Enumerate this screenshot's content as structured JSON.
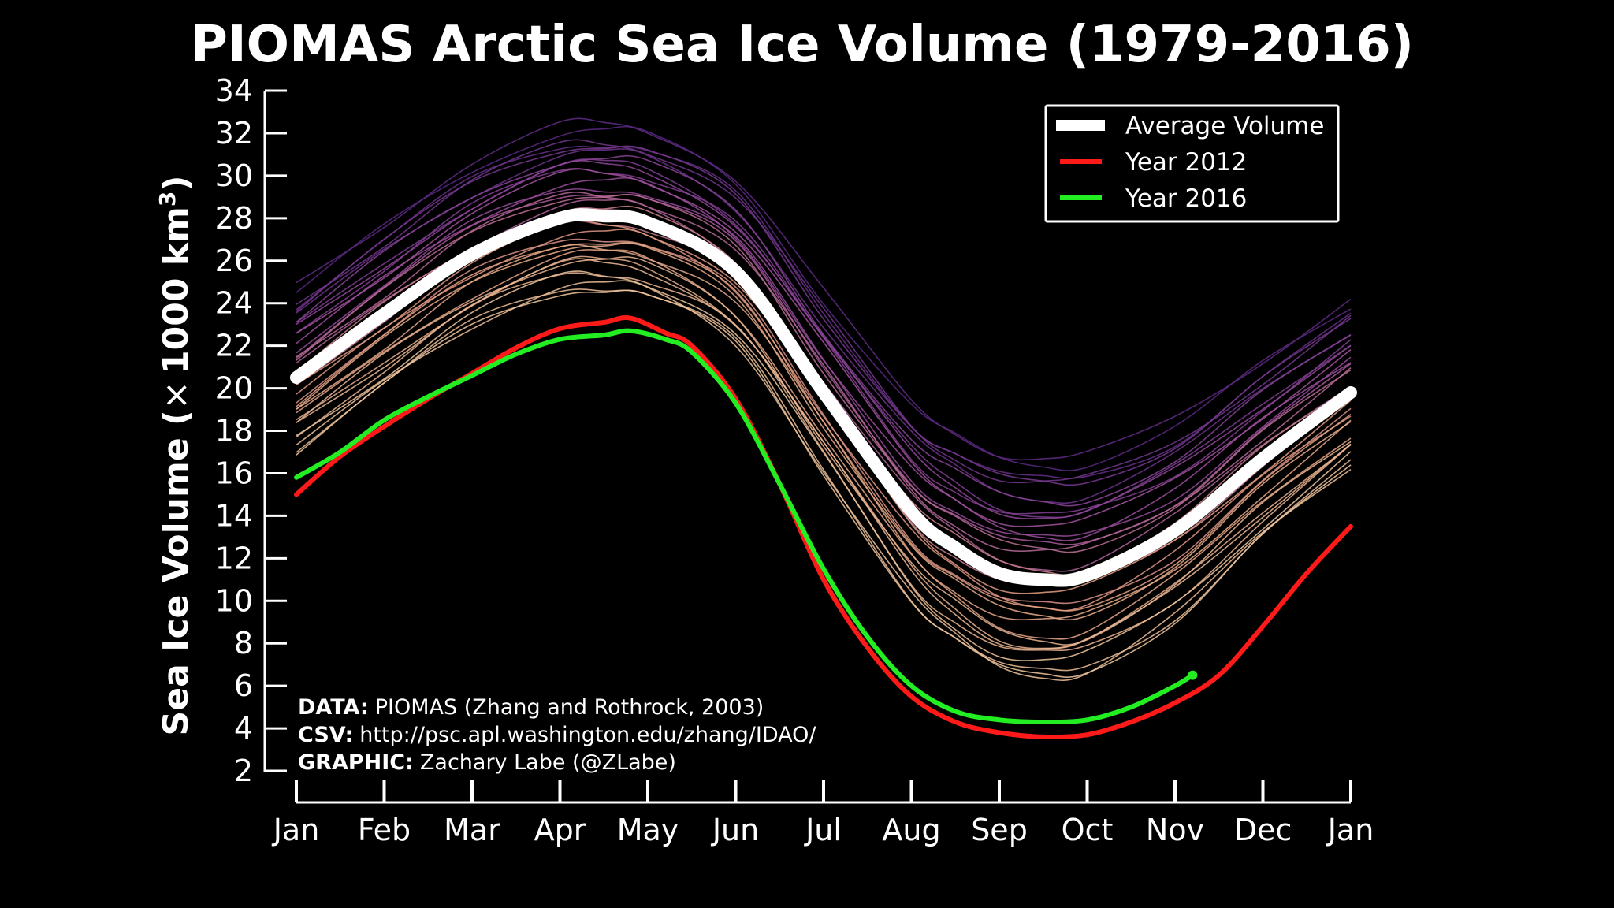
{
  "chart_data": {
    "type": "line",
    "title": "PIOMAS Arctic Sea Ice Volume (1979-2016)",
    "ylabel": "Sea Ice Volume (× 1000 km³)",
    "ylabel_parts": {
      "main": "Sea Ice Volume (",
      "mult": "×",
      "unit": "1000 km",
      "sup": "3",
      "close": ")"
    },
    "xlabel": "",
    "ylim": [
      2,
      34
    ],
    "yticks": [
      2,
      4,
      6,
      8,
      10,
      12,
      14,
      16,
      18,
      20,
      22,
      24,
      26,
      28,
      30,
      32,
      34
    ],
    "months": [
      "Jan",
      "Feb",
      "Mar",
      "Apr",
      "May",
      "Jun",
      "Jul",
      "Aug",
      "Sep",
      "Oct",
      "Nov",
      "Dec",
      "Jan"
    ],
    "legend": {
      "position": "top-right",
      "entries": [
        {
          "label": "Average Volume",
          "color": "#ffffff"
        },
        {
          "label": "Year 2012",
          "color": "#ff1a1a"
        },
        {
          "label": "Year 2016",
          "color": "#22ee22"
        }
      ]
    },
    "series": [
      {
        "name": "Average Volume",
        "color": "#ffffff",
        "x": [
          0,
          1,
          2,
          3,
          3.5,
          4,
          5,
          6,
          7,
          7.5,
          8,
          8.5,
          9,
          10,
          11,
          12
        ],
        "values": [
          20.5,
          23.5,
          26.3,
          28.0,
          28.1,
          27.8,
          25.5,
          19.8,
          14.2,
          12.5,
          11.3,
          11.0,
          11.2,
          13.3,
          16.7,
          19.8
        ]
      },
      {
        "name": "Year 2012",
        "color": "#ff1a1a",
        "x": [
          0,
          0.5,
          1,
          1.5,
          2,
          2.5,
          3,
          3.5,
          3.8,
          4.2,
          4.5,
          5,
          5.5,
          6,
          6.5,
          7,
          7.5,
          8,
          8.5,
          9,
          9.5,
          10,
          10.5,
          11,
          11.5,
          12
        ],
        "values": [
          15.0,
          16.8,
          18.2,
          19.5,
          20.7,
          21.9,
          22.8,
          23.1,
          23.3,
          22.6,
          22.0,
          19.5,
          15.5,
          11.0,
          7.8,
          5.5,
          4.3,
          3.8,
          3.6,
          3.7,
          4.3,
          5.2,
          6.5,
          8.8,
          11.3,
          13.5
        ]
      },
      {
        "name": "Year 2016",
        "color": "#22ee22",
        "x": [
          0,
          0.5,
          1,
          1.5,
          2,
          2.5,
          3,
          3.5,
          3.8,
          4.2,
          4.5,
          5,
          5.5,
          6,
          6.5,
          7,
          7.5,
          8,
          8.5,
          9,
          9.5,
          10,
          10.2
        ],
        "values": [
          15.8,
          17.0,
          18.5,
          19.6,
          20.6,
          21.6,
          22.3,
          22.5,
          22.7,
          22.3,
          21.7,
          19.3,
          15.5,
          11.5,
          8.3,
          6.0,
          4.8,
          4.4,
          4.3,
          4.4,
          5.0,
          6.0,
          6.5
        ]
      }
    ]
  },
  "credits": {
    "data_label": "DATA:",
    "data_text": "PIOMAS (Zhang and Rothrock, 2003)",
    "csv_label": "CSV:",
    "csv_text": "http://psc.apl.washington.edu/zhang/IDAO/",
    "graphic_label": "GRAPHIC:",
    "graphic_text": "Zachary Labe (@ZLabe)"
  }
}
